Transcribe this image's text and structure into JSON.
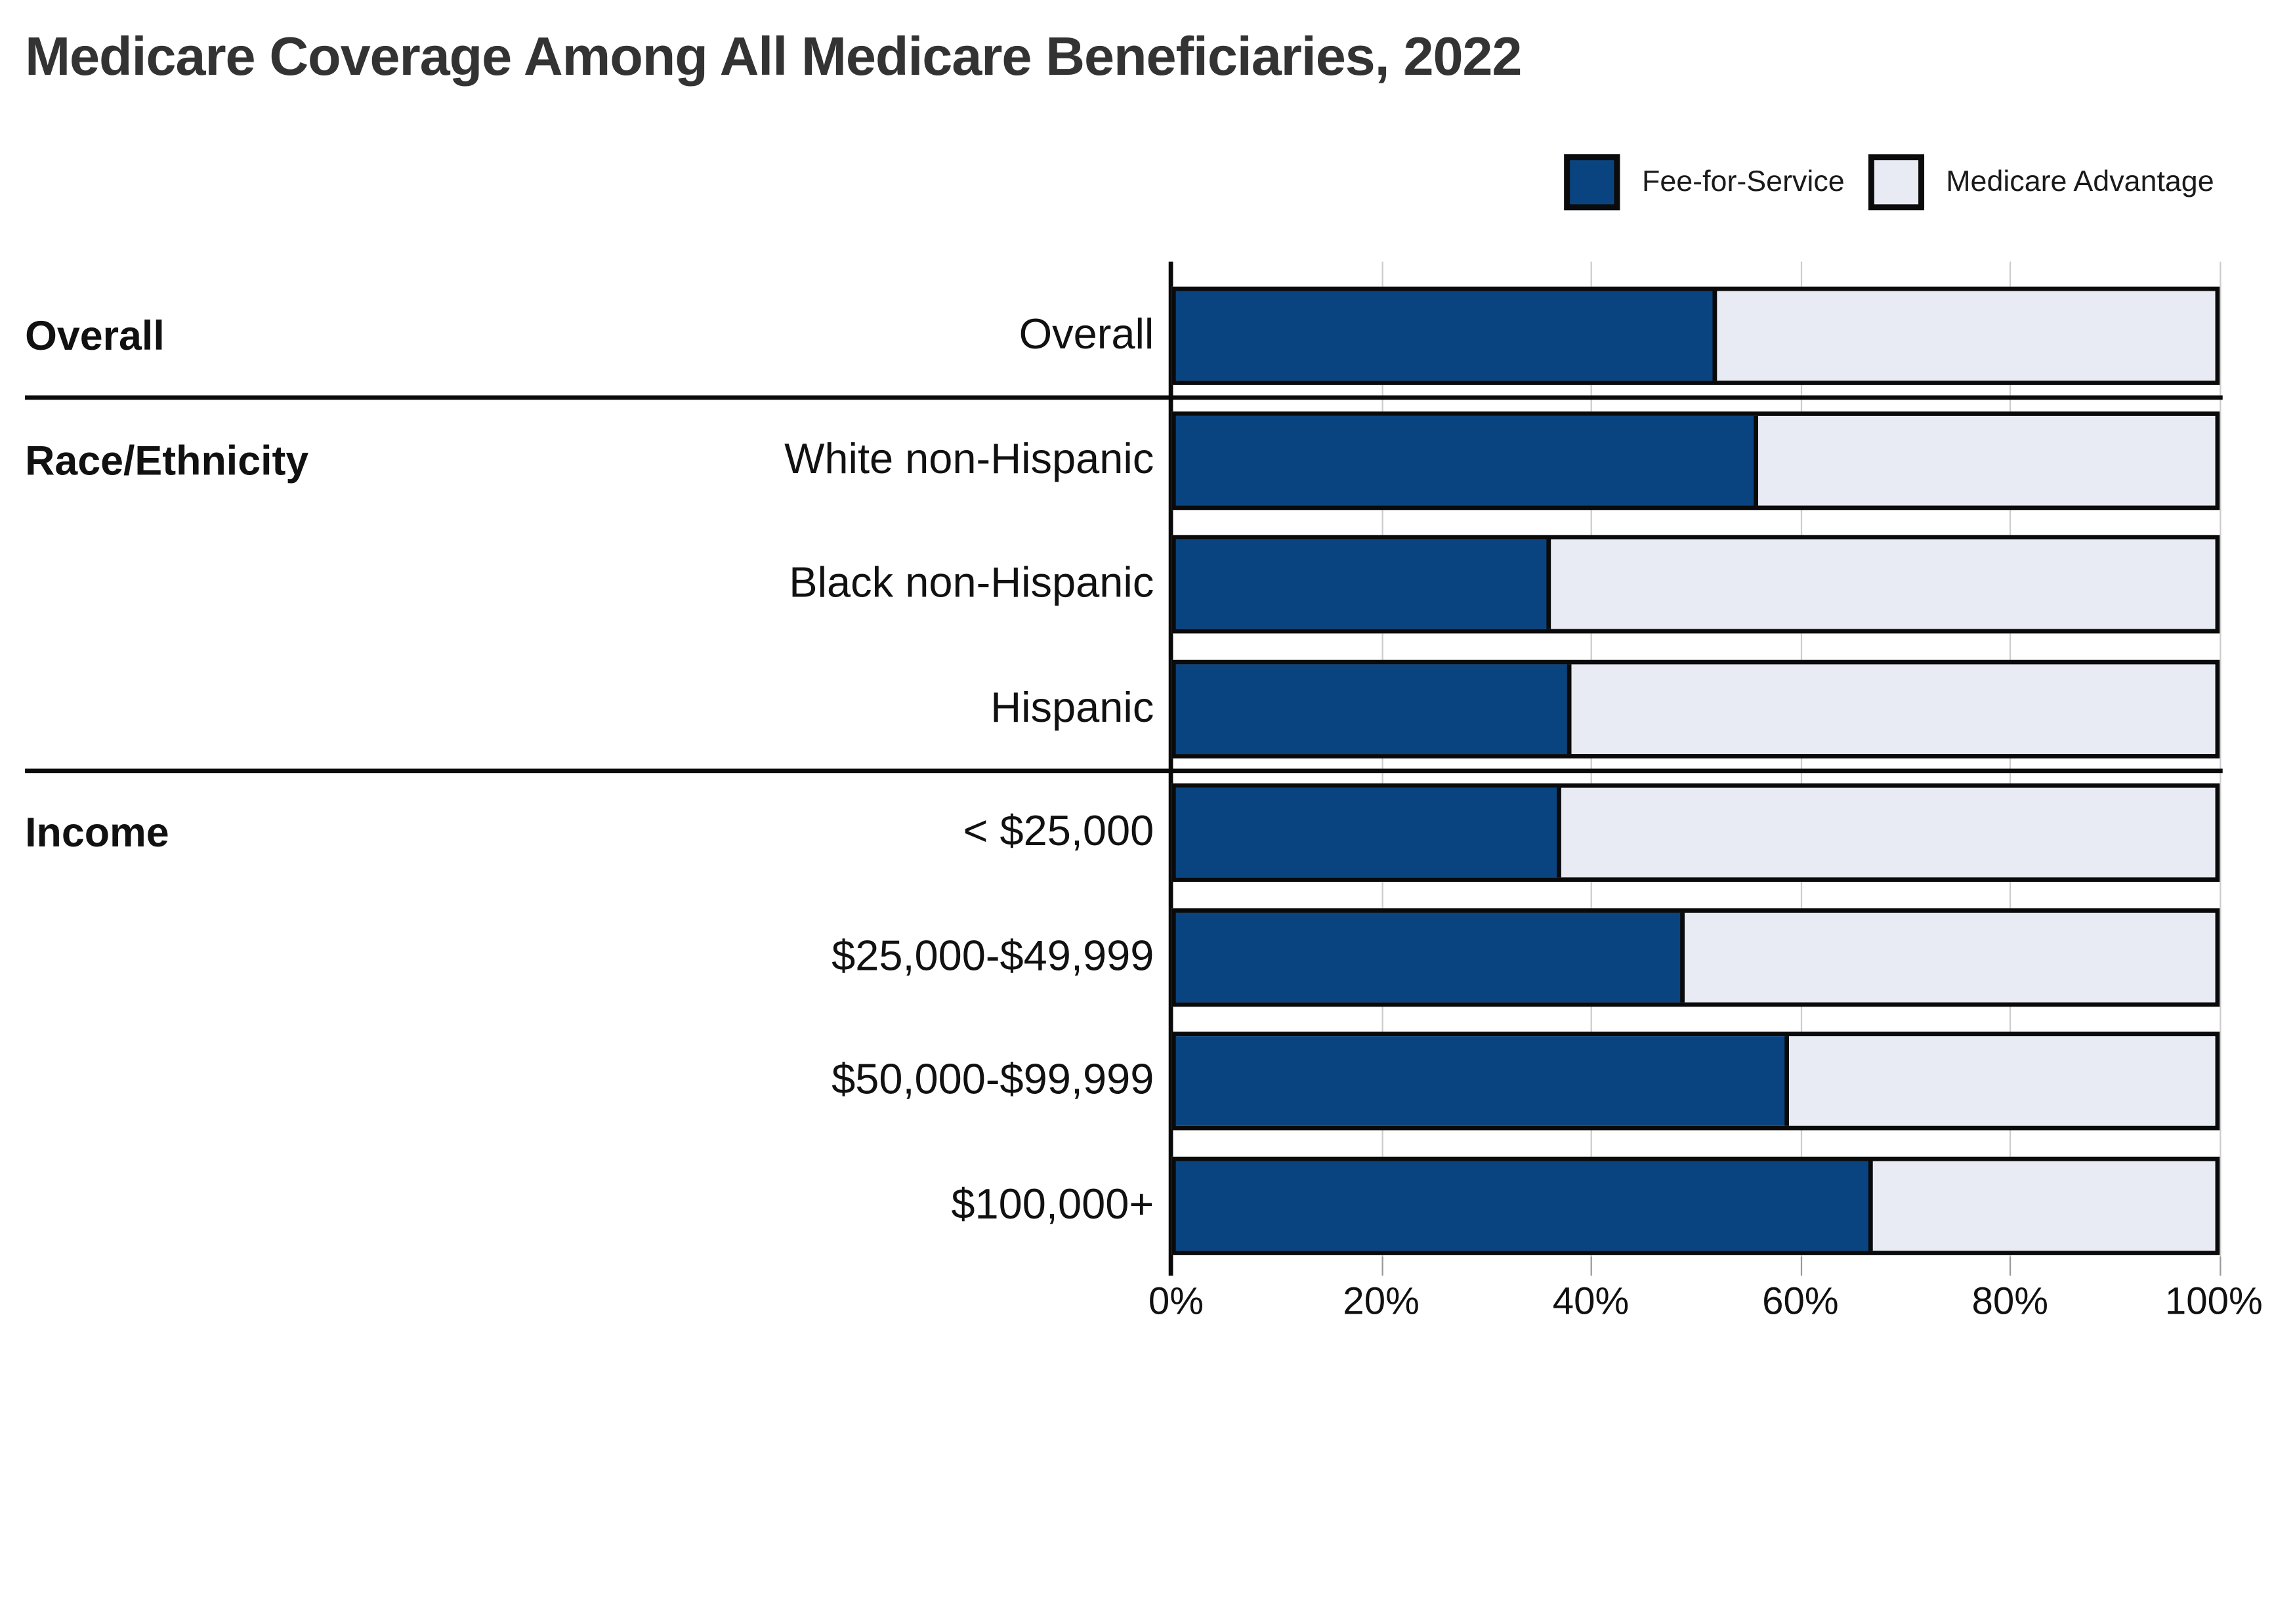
{
  "title": "Medicare Coverage Among All Medicare Beneficiaries, 2022",
  "legend": {
    "items": [
      {
        "label": "Fee-for-Service",
        "color": "#0A4480"
      },
      {
        "label": "Medicare Advantage",
        "color": "#E8EBF3"
      }
    ]
  },
  "chart_data": {
    "type": "bar",
    "orientation": "horizontal",
    "stacked": true,
    "unit": "percent",
    "title": "Medicare Coverage Among All Medicare Beneficiaries, 2022",
    "xlim": [
      0,
      100
    ],
    "x_ticks": [
      "0%",
      "20%",
      "40%",
      "60%",
      "80%",
      "100%"
    ],
    "grid": "vertical",
    "legend_position": "top-right",
    "groups": [
      {
        "label": "Overall",
        "categories": [
          "Overall"
        ]
      },
      {
        "label": "Race/Ethnicity",
        "categories": [
          "White non-Hispanic",
          "Black non-Hispanic",
          "Hispanic"
        ]
      },
      {
        "label": "Income",
        "categories": [
          "< $25,000",
          "$25,000-$49,999",
          "$50,000-$99,999",
          "$100,000+"
        ]
      }
    ],
    "categories": [
      "Overall",
      "White non-Hispanic",
      "Black non-Hispanic",
      "Hispanic",
      "< $25,000",
      "$25,000-$49,999",
      "$50,000-$99,999",
      "$100,000+"
    ],
    "series": [
      {
        "name": "Fee-for-Service",
        "color": "#0A4480",
        "values": [
          52,
          56,
          36,
          38,
          37,
          49,
          59,
          67
        ]
      },
      {
        "name": "Medicare Advantage",
        "color": "#E8EBF3",
        "values": [
          48,
          44,
          64,
          62,
          63,
          51,
          41,
          33
        ]
      }
    ],
    "colors": {
      "fee_for_service": "#0A4480",
      "medicare_advantage": "#E8EBF3",
      "bar_border": "#0a0a0a",
      "gridline": "#cccccc",
      "title_text": "#333333",
      "label_text": "#111111"
    }
  }
}
